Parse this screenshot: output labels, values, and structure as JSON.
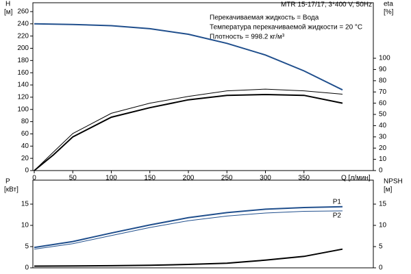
{
  "chart_data": [
    {
      "type": "line",
      "ylabel": "H",
      "yunit": "[м]",
      "y2label": "eta",
      "y2unit": "[%]",
      "xlabel": "Q [л/мин]",
      "title": "MTR 15-17/17, 3*400 V, 50Hz",
      "annotations": [
        "Перекачиваемая жидкость = Вода",
        "Температура перекачиваемой жидкости = 20 °C",
        "Плотность = 998.2 кг/м³"
      ],
      "xlim": [
        0,
        440
      ],
      "xticks": [
        0,
        50,
        100,
        150,
        200,
        250,
        300,
        350
      ],
      "ylim": [
        0,
        270
      ],
      "yticks": [
        0,
        20,
        40,
        60,
        80,
        100,
        120,
        140,
        160,
        180,
        200,
        220,
        240,
        260
      ],
      "y2lim": [
        0,
        147
      ],
      "y2ticks": [
        0,
        10,
        20,
        30,
        40,
        50,
        60,
        70,
        80,
        90,
        100
      ],
      "x": [
        0,
        25,
        50,
        100,
        150,
        200,
        250,
        300,
        350,
        400
      ],
      "series": [
        {
          "color": "#1f4e8c",
          "width": 2,
          "values": [
            240,
            239.5,
            239,
            237,
            232,
            223,
            208,
            189,
            163,
            132
          ]
        },
        {
          "color": "#000000",
          "width": 1,
          "axis": "y2",
          "values": [
            0,
            16.5,
            33,
            51,
            60,
            66,
            71,
            72.5,
            71,
            68
          ]
        },
        {
          "color": "#000000",
          "width": 2,
          "axis": "y2",
          "values": [
            0,
            14,
            30,
            47.5,
            56,
            63,
            67,
            67.7,
            67,
            60
          ]
        }
      ]
    },
    {
      "type": "line",
      "ylabel": "P",
      "yunit": "[кВт]",
      "y2label": "NPSH",
      "y2unit": "[м]",
      "xlim": [
        0,
        440
      ],
      "ylim": [
        0,
        20
      ],
      "yticks": [
        0,
        5,
        10,
        15
      ],
      "y2lim": [
        0,
        20
      ],
      "y2ticks": [
        0,
        5,
        10,
        15
      ],
      "x": [
        0,
        50,
        100,
        150,
        200,
        250,
        300,
        350,
        400
      ],
      "series": [
        {
          "name": "P1",
          "color": "#1f4e8c",
          "width": 2,
          "values": [
            4.8,
            6.2,
            8.2,
            10.1,
            11.8,
            13.0,
            13.8,
            14.2,
            14.4
          ]
        },
        {
          "name": "P2",
          "color": "#1f4e8c",
          "width": 1,
          "values": [
            4.4,
            5.7,
            7.6,
            9.5,
            11.1,
            12.2,
            12.9,
            13.3,
            13.4
          ]
        },
        {
          "color": "#000000",
          "width": 2,
          "axis": "y2",
          "values": [
            0.4,
            0.45,
            0.5,
            0.6,
            0.8,
            1.1,
            1.8,
            2.7,
            4.4
          ]
        }
      ]
    }
  ]
}
